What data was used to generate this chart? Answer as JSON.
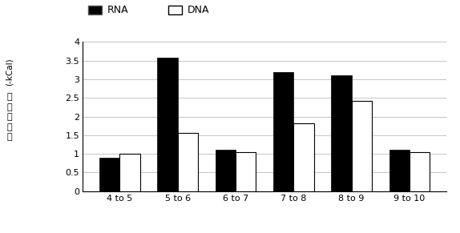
{
  "categories": [
    "4 to 5",
    "5 to 6",
    "6 to 7",
    "7 to 8",
    "8 to 9",
    "9 to 10"
  ],
  "rna_values": [
    0.9,
    3.57,
    1.1,
    3.2,
    3.1,
    1.1
  ],
  "dna_values": [
    1.0,
    1.57,
    1.05,
    1.82,
    2.42,
    1.05
  ],
  "rna_color": "#000000",
  "dna_color": "#ffffff",
  "dna_edge_color": "#000000",
  "ylim": [
    0,
    4
  ],
  "yticks": [
    0,
    0.5,
    1,
    1.5,
    2,
    2.5,
    3,
    3.5,
    4
  ],
  "ytick_labels": [
    "0",
    "0.5",
    "1",
    "1.5",
    "2",
    "2.5",
    "3",
    "3.5",
    "4"
  ],
  "ylabel_line1": "(-kCal)",
  "ylabel_chinese": "结\n构\n稳\n定\n性",
  "legend_rna": "RNA",
  "legend_dna": "DNA",
  "bar_width": 0.35,
  "figsize": [
    5.74,
    2.91
  ],
  "dpi": 100,
  "background_color": "#ffffff",
  "grid_color": "#bbbbbb"
}
